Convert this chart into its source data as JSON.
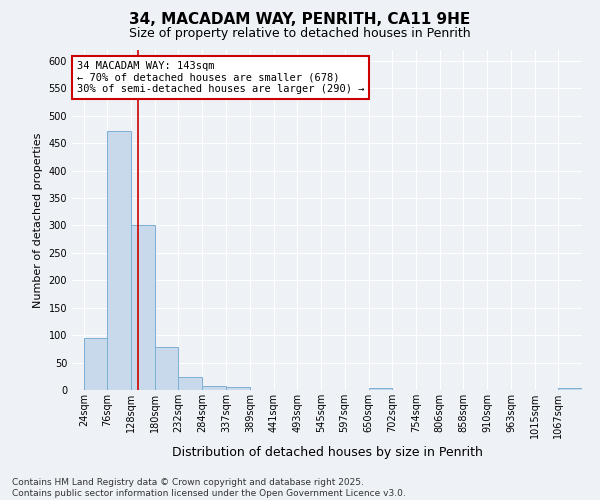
{
  "title1": "34, MACADAM WAY, PENRITH, CA11 9HE",
  "title2": "Size of property relative to detached houses in Penrith",
  "xlabel": "Distribution of detached houses by size in Penrith",
  "ylabel": "Number of detached properties",
  "bin_labels": [
    "24sqm",
    "76sqm",
    "128sqm",
    "180sqm",
    "232sqm",
    "284sqm",
    "337sqm",
    "389sqm",
    "441sqm",
    "493sqm",
    "545sqm",
    "597sqm",
    "650sqm",
    "702sqm",
    "754sqm",
    "806sqm",
    "858sqm",
    "910sqm",
    "963sqm",
    "1015sqm",
    "1067sqm"
  ],
  "bin_edges": [
    24,
    76,
    128,
    180,
    232,
    284,
    337,
    389,
    441,
    493,
    545,
    597,
    650,
    702,
    754,
    806,
    858,
    910,
    963,
    1015,
    1067
  ],
  "bar_heights": [
    95,
    472,
    300,
    78,
    23,
    8,
    5,
    0,
    0,
    0,
    0,
    0,
    3,
    0,
    0,
    0,
    0,
    0,
    0,
    0,
    3
  ],
  "bar_color": "#c8d9ec",
  "bar_edge_color": "#7bafd4",
  "property_size": 143,
  "vline_color": "#cc0000",
  "annotation_line1": "34 MACADAM WAY: 143sqm",
  "annotation_line2": "← 70% of detached houses are smaller (678)",
  "annotation_line3": "30% of semi-detached houses are larger (290) →",
  "annotation_box_facecolor": "#ffffff",
  "annotation_box_edgecolor": "#cc0000",
  "ylim": [
    0,
    620
  ],
  "yticks": [
    0,
    50,
    100,
    150,
    200,
    250,
    300,
    350,
    400,
    450,
    500,
    550,
    600
  ],
  "footer": "Contains HM Land Registry data © Crown copyright and database right 2025.\nContains public sector information licensed under the Open Government Licence v3.0.",
  "bg_color": "#eef2f7",
  "grid_color": "#ffffff",
  "title1_fontsize": 11,
  "title2_fontsize": 9,
  "ylabel_fontsize": 8,
  "xlabel_fontsize": 9,
  "tick_fontsize": 7,
  "annot_fontsize": 7.5,
  "footer_fontsize": 6.5
}
